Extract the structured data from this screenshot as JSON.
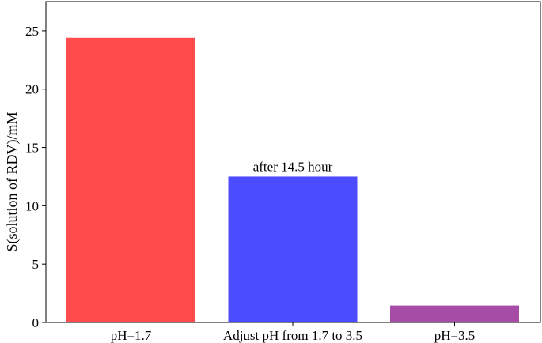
{
  "chart_data": {
    "type": "bar",
    "categories": [
      "pH=1.7",
      "Adjust pH from 1.7 to 3.5",
      "pH=3.5"
    ],
    "values": [
      24.4,
      12.5,
      1.45
    ],
    "colors": [
      "#ff4b4b",
      "#4b4bff",
      "#a64ca6"
    ],
    "title": "",
    "xlabel": "",
    "ylabel": "S(solution of RDV)/mM",
    "ylim": [
      0,
      27.5
    ],
    "yticks": [
      0,
      5,
      10,
      15,
      20,
      25
    ],
    "grid": false,
    "annotations": [
      {
        "category": "Adjust pH from 1.7 to 3.5",
        "text": "after 14.5 hour"
      }
    ]
  }
}
